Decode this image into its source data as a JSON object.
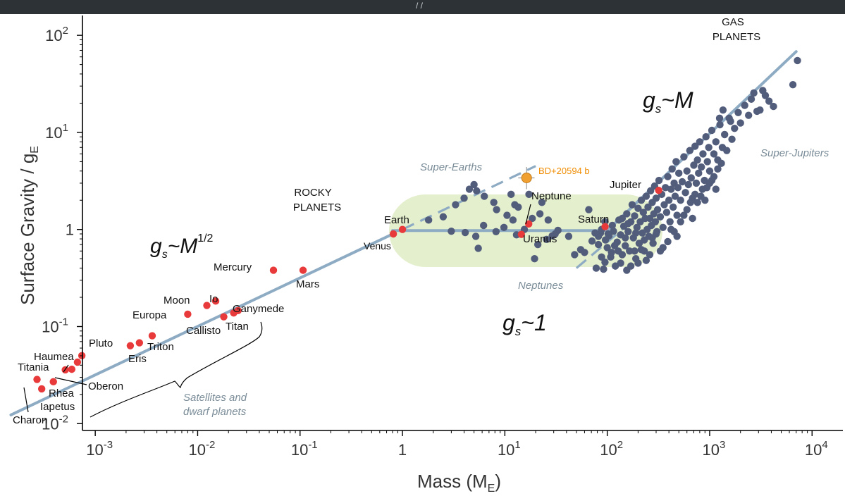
{
  "window": {
    "title_fragment": "/ /"
  },
  "colors": {
    "fit_line": "#8eabc4",
    "exoplanet_point": "#525d7c",
    "solar_system_point": "#e83a3a",
    "highlight_point": "#f0a030",
    "band_fill": "#e4efcd",
    "axis": "#000000",
    "regime_label": "#7a8c98",
    "annotation_label": "#f08c00"
  },
  "chart_data": {
    "type": "scatter",
    "title": "",
    "xlabel": {
      "base": "Mass (M",
      "sub": "E",
      "close": ")"
    },
    "ylabel": {
      "base": "Surface Gravity / g",
      "sub": "E"
    },
    "x_scale": "log",
    "y_scale": "log",
    "xlim": [
      0.00075,
      20000
    ],
    "ylim": [
      0.0085,
      140
    ],
    "x_ticks": [
      {
        "value": 0.001,
        "base": "10",
        "exp": "-3"
      },
      {
        "value": 0.01,
        "base": "10",
        "exp": "-2"
      },
      {
        "value": 0.1,
        "base": "10",
        "exp": "-1"
      },
      {
        "value": 1,
        "base": "1",
        "exp": ""
      },
      {
        "value": 10,
        "base": "10",
        "exp": "1"
      },
      {
        "value": 100,
        "base": "10",
        "exp": "2"
      },
      {
        "value": 1000,
        "base": "10",
        "exp": "3"
      },
      {
        "value": 10000,
        "base": "10",
        "exp": "4"
      }
    ],
    "y_ticks": [
      {
        "value": 0.01,
        "base": "10",
        "exp": "-2"
      },
      {
        "value": 0.1,
        "base": "10",
        "exp": "-1"
      },
      {
        "value": 1,
        "base": "1",
        "exp": ""
      },
      {
        "value": 10,
        "base": "10",
        "exp": "1"
      },
      {
        "value": 100,
        "base": "10",
        "exp": "2"
      }
    ],
    "grid": false,
    "regions": [
      {
        "label_lines": [
          "ROCKY",
          "PLANETS"
        ]
      },
      {
        "label_lines": [
          "GAS",
          "PLANETS"
        ]
      }
    ],
    "regime_labels": [
      {
        "text": "Super-Earths"
      },
      {
        "text": "Neptunes"
      },
      {
        "text": "Super-Jupiters"
      },
      {
        "text_lines": [
          "Satellites and",
          "dwarf planets"
        ]
      }
    ],
    "scaling_laws": [
      {
        "g": "g",
        "sub": "s",
        "rel": "~M",
        "sup": "1/2"
      },
      {
        "g": "g",
        "sub": "s",
        "rel": "~M",
        "sup": ""
      },
      {
        "g": "g",
        "sub": "s",
        "rel": "~1",
        "sup": ""
      }
    ],
    "solar_system_bodies": [
      {
        "name": "Charon",
        "mass": 0.00027,
        "gravity": 0.0285
      },
      {
        "name": "Iapetus",
        "mass": 0.0003,
        "gravity": 0.0228
      },
      {
        "name": "Rhea",
        "mass": 0.00039,
        "gravity": 0.027
      },
      {
        "name": "Titania",
        "mass": 0.00059,
        "gravity": 0.0363
      },
      {
        "name": "Oberon",
        "mass": 0.00051,
        "gravity": 0.0358
      },
      {
        "name": "Haumea",
        "mass": 0.00067,
        "gravity": 0.043
      },
      {
        "name": "Haumea",
        "mass": 0.00074,
        "gravity": 0.0501
      },
      {
        "name": "Pluto",
        "mass": 0.0022,
        "gravity": 0.0634
      },
      {
        "name": "Eris",
        "mass": 0.0027,
        "gravity": 0.068
      },
      {
        "name": "Triton",
        "mass": 0.0036,
        "gravity": 0.0804
      },
      {
        "name": "Europa",
        "mass": 0.008,
        "gravity": 0.134
      },
      {
        "name": "Moon",
        "mass": 0.0123,
        "gravity": 0.165
      },
      {
        "name": "Io",
        "mass": 0.015,
        "gravity": 0.183
      },
      {
        "name": "Callisto",
        "mass": 0.018,
        "gravity": 0.126
      },
      {
        "name": "Titan",
        "mass": 0.0225,
        "gravity": 0.138
      },
      {
        "name": "Ganymede",
        "mass": 0.0248,
        "gravity": 0.146
      },
      {
        "name": "Mercury",
        "mass": 0.055,
        "gravity": 0.38
      },
      {
        "name": "Mars",
        "mass": 0.107,
        "gravity": 0.38
      },
      {
        "name": "Venus",
        "mass": 0.815,
        "gravity": 0.9
      },
      {
        "name": "Earth",
        "mass": 1.0,
        "gravity": 1.0
      },
      {
        "name": "Uranus",
        "mass": 14.5,
        "gravity": 0.89
      },
      {
        "name": "Neptune",
        "mass": 17.1,
        "gravity": 1.14
      },
      {
        "name": "Saturn",
        "mass": 95.2,
        "gravity": 1.07
      },
      {
        "name": "Jupiter",
        "mass": 318,
        "gravity": 2.53
      }
    ],
    "labels": [
      {
        "text": "Charon"
      },
      {
        "text": "Iapetus"
      },
      {
        "text": "Rhea"
      },
      {
        "text": "Titania"
      },
      {
        "text": "Oberon"
      },
      {
        "text": "Haumea"
      },
      {
        "text": "Pluto"
      },
      {
        "text": "Eris"
      },
      {
        "text": "Triton"
      },
      {
        "text": "Europa"
      },
      {
        "text": "Moon"
      },
      {
        "text": "Io"
      },
      {
        "text": "Callisto"
      },
      {
        "text": "Titan"
      },
      {
        "text": "Ganymede"
      },
      {
        "text": "Mercury"
      },
      {
        "text": "Mars"
      },
      {
        "text": "Venus"
      },
      {
        "text": "Earth"
      },
      {
        "text": "Uranus"
      },
      {
        "text": "Neptune"
      },
      {
        "text": "Saturn"
      },
      {
        "text": "Jupiter"
      }
    ],
    "highlight": {
      "name": "BD+20594 b",
      "mass": 16.3,
      "gravity": 3.4,
      "mass_err": [
        13.5,
        19.5
      ],
      "gravity_err": [
        2.6,
        4.4
      ]
    },
    "fit_lines": [
      {
        "label": "g_s~M^1/2",
        "points": [
          [
            0.00015,
            0.0123
          ],
          [
            0.8,
            0.896
          ]
        ],
        "style": "solid"
      },
      {
        "label": "g_s~1",
        "points": [
          [
            0.8,
            0.975
          ],
          [
            100,
            0.975
          ]
        ],
        "style": "solid"
      },
      {
        "label": "g_s~M",
        "points": [
          [
            100,
            0.975
          ],
          [
            7000,
            68
          ]
        ],
        "style": "solid"
      },
      {
        "label": "super-earth branch",
        "points": [
          [
            1.0,
            1.0
          ],
          [
            20,
            4.5
          ]
        ],
        "style": "dashed"
      },
      {
        "label": "neptune branch",
        "points": [
          [
            50,
            0.4
          ],
          [
            140,
            1.0
          ]
        ],
        "style": "dashed"
      }
    ],
    "exoplanets": [
      [
        1.8,
        1.25
      ],
      [
        2.5,
        1.35
      ],
      [
        3.3,
        1.8
      ],
      [
        4.0,
        2.1
      ],
      [
        4.5,
        2.6
      ],
      [
        5.0,
        2.9
      ],
      [
        5.3,
        2.5
      ],
      [
        6.3,
        2.2
      ],
      [
        7.8,
        1.9
      ],
      [
        8.3,
        1.6
      ],
      [
        10.5,
        1.4
      ],
      [
        11.5,
        2.3
      ],
      [
        12.5,
        1.8
      ],
      [
        13.5,
        1.7
      ],
      [
        17.2,
        2.3
      ],
      [
        18.5,
        1.3
      ],
      [
        22,
        1.45
      ],
      [
        23,
        1.9
      ],
      [
        26.5,
        1.25
      ],
      [
        29,
        0.86
      ],
      [
        33,
        0.98
      ],
      [
        3.0,
        0.96
      ],
      [
        4.1,
        0.93
      ],
      [
        5.2,
        0.85
      ],
      [
        5.5,
        0.64
      ],
      [
        6.2,
        1.1
      ],
      [
        8.2,
        0.95
      ],
      [
        9.8,
        1.05
      ],
      [
        12.0,
        1.25
      ],
      [
        13.0,
        0.88
      ],
      [
        15.5,
        1.0
      ],
      [
        19.5,
        0.5
      ],
      [
        21,
        0.7
      ],
      [
        25.5,
        0.79
      ],
      [
        31,
        0.9
      ],
      [
        42,
        0.85
      ],
      [
        48,
        0.55
      ],
      [
        55,
        0.62
      ],
      [
        60,
        0.58
      ],
      [
        66,
        1.6
      ],
      [
        71,
        0.76
      ],
      [
        78,
        0.4
      ],
      [
        82,
        0.7
      ],
      [
        86,
        0.92
      ],
      [
        88,
        0.52
      ],
      [
        95,
        0.46
      ],
      [
        100,
        0.65
      ],
      [
        104,
        0.86
      ],
      [
        110,
        0.58
      ],
      [
        115,
        0.96
      ],
      [
        120,
        0.42
      ],
      [
        125,
        0.74
      ],
      [
        130,
        1.25
      ],
      [
        135,
        0.88
      ],
      [
        140,
        0.55
      ],
      [
        145,
        1.08
      ],
      [
        150,
        0.68
      ],
      [
        155,
        1.45
      ],
      [
        160,
        0.95
      ],
      [
        165,
        0.6
      ],
      [
        170,
        1.2
      ],
      [
        175,
        1.8
      ],
      [
        180,
        0.82
      ],
      [
        185,
        1.38
      ],
      [
        190,
        0.5
      ],
      [
        195,
        1.05
      ],
      [
        200,
        1.65
      ],
      [
        205,
        0.72
      ],
      [
        210,
        1.2
      ],
      [
        215,
        2.0
      ],
      [
        220,
        0.92
      ],
      [
        225,
        1.5
      ],
      [
        230,
        0.6
      ],
      [
        235,
        1.3
      ],
      [
        240,
        2.2
      ],
      [
        245,
        1.0
      ],
      [
        250,
        1.7
      ],
      [
        255,
        0.85
      ],
      [
        260,
        1.3
      ],
      [
        265,
        2.5
      ],
      [
        270,
        1.1
      ],
      [
        275,
        1.9
      ],
      [
        280,
        0.72
      ],
      [
        285,
        1.45
      ],
      [
        290,
        2.8
      ],
      [
        295,
        1.2
      ],
      [
        300,
        2.1
      ],
      [
        305,
        0.95
      ],
      [
        310,
        1.6
      ],
      [
        320,
        3.2
      ],
      [
        330,
        1.35
      ],
      [
        340,
        2.3
      ],
      [
        350,
        1.05
      ],
      [
        360,
        1.8
      ],
      [
        370,
        2.7
      ],
      [
        380,
        1.5
      ],
      [
        390,
        3.5
      ],
      [
        400,
        2.0
      ],
      [
        410,
        1.2
      ],
      [
        420,
        2.6
      ],
      [
        430,
        4.2
      ],
      [
        440,
        1.7
      ],
      [
        450,
        3.0
      ],
      [
        460,
        2.2
      ],
      [
        470,
        5.0
      ],
      [
        480,
        1.4
      ],
      [
        490,
        2.7
      ],
      [
        500,
        3.8
      ],
      [
        520,
        2.0
      ],
      [
        540,
        3.1
      ],
      [
        560,
        5.6
      ],
      [
        580,
        2.4
      ],
      [
        600,
        4.0
      ],
      [
        620,
        2.9
      ],
      [
        640,
        6.5
      ],
      [
        660,
        3.4
      ],
      [
        680,
        2.1
      ],
      [
        700,
        4.6
      ],
      [
        720,
        7.2
      ],
      [
        740,
        3.0
      ],
      [
        760,
        5.2
      ],
      [
        780,
        3.8
      ],
      [
        800,
        8.0
      ],
      [
        830,
        4.4
      ],
      [
        860,
        6.0
      ],
      [
        890,
        3.2
      ],
      [
        920,
        9.0
      ],
      [
        950,
        5.0
      ],
      [
        980,
        7.0
      ],
      [
        1000,
        4.0
      ],
      [
        1050,
        10.5
      ],
      [
        1100,
        6.0
      ],
      [
        1150,
        8.0
      ],
      [
        1200,
        5.2
      ],
      [
        1260,
        12.0
      ],
      [
        1330,
        7.0
      ],
      [
        1400,
        9.5
      ],
      [
        1470,
        6.5
      ],
      [
        1550,
        14.0
      ],
      [
        1650,
        8.5
      ],
      [
        1750,
        11.0
      ],
      [
        1900,
        16.0
      ],
      [
        2000,
        12.5
      ],
      [
        2200,
        19.0
      ],
      [
        2400,
        15.0
      ],
      [
        2550,
        22.0
      ],
      [
        2700,
        25.5
      ],
      [
        2900,
        16.5
      ],
      [
        3100,
        17.0
      ],
      [
        3300,
        27.0
      ],
      [
        3500,
        24.0
      ],
      [
        3800,
        21.0
      ],
      [
        4200,
        18.5
      ],
      [
        6500,
        31.0
      ],
      [
        7200,
        55.0
      ],
      [
        1350,
        17.0
      ],
      [
        1600,
        13.0
      ],
      [
        1250,
        14.0
      ],
      [
        420,
        1.0
      ],
      [
        480,
        0.85
      ],
      [
        350,
        0.65
      ],
      [
        300,
        0.9
      ],
      [
        260,
        0.55
      ],
      [
        230,
        0.78
      ],
      [
        200,
        0.45
      ],
      [
        185,
        0.6
      ],
      [
        170,
        0.42
      ],
      [
        150,
        0.82
      ],
      [
        135,
        0.45
      ],
      [
        118,
        0.68
      ],
      [
        108,
        0.52
      ],
      [
        96,
        0.78
      ],
      [
        92,
        0.39
      ],
      [
        155,
        0.38
      ],
      [
        240,
        0.48
      ],
      [
        560,
        1.4
      ],
      [
        650,
        1.9
      ],
      [
        720,
        2.3
      ],
      [
        850,
        2.6
      ],
      [
        900,
        2.0
      ],
      [
        1000,
        3.0
      ],
      [
        1100,
        3.5
      ],
      [
        1200,
        4.2
      ],
      [
        520,
        1.2
      ],
      [
        600,
        1.6
      ],
      [
        680,
        1.3
      ],
      [
        760,
        1.9
      ],
      [
        820,
        2.2
      ],
      [
        940,
        2.7
      ],
      [
        1050,
        3.2
      ],
      [
        1150,
        2.6
      ],
      [
        1300,
        4.8
      ],
      [
        450,
        0.95
      ],
      [
        390,
        0.75
      ],
      [
        330,
        0.6
      ],
      [
        275,
        0.82
      ],
      [
        215,
        0.62
      ],
      [
        190,
        0.92
      ],
      [
        160,
        1.15
      ],
      [
        140,
        1.3
      ],
      [
        128,
        0.6
      ],
      [
        112,
        1.1
      ],
      [
        102,
        0.9
      ],
      [
        95,
        1.2
      ],
      [
        88,
        1.0
      ],
      [
        82,
        0.85
      ],
      [
        76,
        0.92
      ]
    ]
  }
}
